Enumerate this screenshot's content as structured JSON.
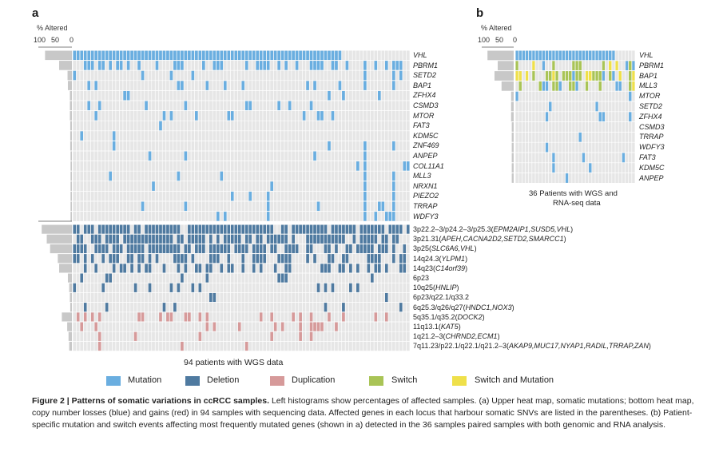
{
  "panel_a": {
    "letter": "a",
    "axis_title": "% Altered",
    "axis_ticks": [
      "100",
      "50",
      "0"
    ],
    "genes": [
      "VHL",
      "PBRM1",
      "SETD2",
      "BAP1",
      "ZFHX4",
      "CSMD3",
      "MTOR",
      "FAT3",
      "KDM5C",
      "ZNF469",
      "ANPEP",
      "COL11A1",
      "MLL3",
      "NRXN1",
      "PIEZO2",
      "TRRAP",
      "WDFY3"
    ],
    "cnv_rows": [
      {
        "region": "3p22.2–3/p24.2–3/p25.3",
        "genes": "EPM2AIP1,SUSD5,VHL"
      },
      {
        "region": "3p21.31",
        "genes": "APEH,CACNA2D2,SETD2,SMARCC1"
      },
      {
        "region": "3p25",
        "genes": "SLC6A6,VHL"
      },
      {
        "region": "14q24.3",
        "genes": "YLPM1"
      },
      {
        "region": "14q23",
        "genes": "C14orf39"
      },
      {
        "region": "6p23",
        "genes": ""
      },
      {
        "region": "10q25",
        "genes": "HNLIP"
      },
      {
        "region": "6p23/q22.1/q33.2",
        "genes": ""
      },
      {
        "region": "6q25.3/q26/q27",
        "genes": "HNDC1,NOX3"
      },
      {
        "region": "5q35.1/q35.2",
        "genes": "DOCK2"
      },
      {
        "region": "11q13.1",
        "genes": "KAT5"
      },
      {
        "region": "1q21.2–3",
        "genes": "CHRND2,ECM1"
      },
      {
        "region": "7q11.23/p22.1/q22.1/q21.2–3",
        "genes": "AKAP9,MUC17,NYAP1,RADIL,TRRAP,ZAN"
      }
    ],
    "x_caption": "94 patients with WGS data"
  },
  "panel_b": {
    "letter": "b",
    "axis_title": "% Altered",
    "axis_ticks": [
      "100",
      "50",
      "0"
    ],
    "genes": [
      "VHL",
      "PBRM1",
      "BAP1",
      "MLL3",
      "MTOR",
      "SETD2",
      "ZFHX4",
      "CSMD3",
      "TRRAP",
      "WDFY3",
      "FAT3",
      "KDM5C",
      "ANPEP"
    ],
    "x_caption_line1": "36 Patients with WGS and",
    "x_caption_line2": "RNA-seq data"
  },
  "legend": [
    {
      "label": "Mutation",
      "color": "#6aaee0"
    },
    {
      "label": "Deletion",
      "color": "#4f7aa0"
    },
    {
      "label": "Duplication",
      "color": "#d69a9a"
    },
    {
      "label": "Switch",
      "color": "#a9c456"
    },
    {
      "label": "Switch and Mutation",
      "color": "#efe04a"
    }
  ],
  "colors": {
    "cell_bg": "#e6e6e6",
    "mutation": "#6aaee0",
    "deletion": "#4f7aa0",
    "duplication": "#d69a9a",
    "switch": "#a9c456",
    "switch_mutation": "#efe04a",
    "histogram": "#c8c8c8"
  },
  "caption": {
    "title": "Figure 2 | Patterns of somatic variations in ccRCC samples.",
    "body": " Left histograms show percentages of affected samples. (a) Upper heat map, somatic mutations; bottom heat map, copy number losses (blue) and gains (red) in 94 samples with sequencing data. Affected genes in each locus that harbour somatic SNVs are listed in the parentheses. (b) Patient-specific mutation and switch events affecting most frequently mutated genes (shown in a) detected in the 36 samples paired samples with both genomic and RNA analysis."
  },
  "chart_data": [
    {
      "type": "heatmap",
      "panel": "a (upper)",
      "rows": [
        "VHL",
        "PBRM1",
        "SETD2",
        "BAP1",
        "ZFHX4",
        "CSMD3",
        "MTOR",
        "FAT3",
        "KDM5C",
        "ZNF469",
        "ANPEP",
        "COL11A1",
        "MLL3",
        "NRXN1",
        "PIEZO2",
        "TRRAP",
        "WDFY3"
      ],
      "columns": 94,
      "altered_percent": [
        80,
        38,
        13,
        12,
        6,
        6,
        6,
        5,
        5,
        5,
        4,
        4,
        4,
        4,
        4,
        4,
        4
      ],
      "legend": [
        "Mutation"
      ]
    },
    {
      "type": "heatmap",
      "panel": "a (lower)",
      "rows": [
        "3p22.2–3/p24.2–3/p25.3",
        "3p21.31",
        "3p25",
        "14q24.3",
        "14q23",
        "6p23",
        "10q25",
        "6p23/q22.1/q33.2",
        "6q25.3/q26/q27",
        "5q35.1/q35.2",
        "11q13.1",
        "1q21.2–3",
        "7q11.23/p22.1/q22.1/q21.2–3"
      ],
      "columns": 94,
      "altered_percent": [
        90,
        75,
        65,
        42,
        38,
        12,
        8,
        6,
        5,
        30,
        14,
        10,
        8
      ],
      "legend": [
        "Deletion",
        "Duplication"
      ]
    },
    {
      "type": "heatmap",
      "panel": "b",
      "rows": [
        "VHL",
        "PBRM1",
        "BAP1",
        "MLL3",
        "MTOR",
        "SETD2",
        "ZFHX4",
        "CSMD3",
        "TRRAP",
        "WDFY3",
        "FAT3",
        "KDM5C",
        "ANPEP"
      ],
      "columns": 36,
      "altered_percent": [
        82,
        50,
        60,
        38,
        8,
        8,
        8,
        6,
        6,
        6,
        6,
        6,
        6
      ],
      "legend": [
        "Mutation",
        "Switch",
        "Switch and Mutation"
      ]
    }
  ]
}
